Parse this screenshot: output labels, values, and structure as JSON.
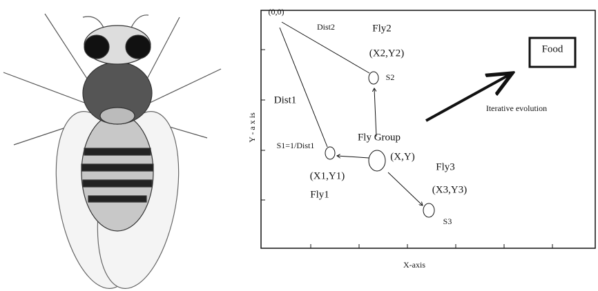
{
  "origin": "(0,0)",
  "dist2": "Dist2",
  "fly2": "Fly2",
  "fly2_pos": "(X2,Y2)",
  "s2": "S2",
  "food": "Food",
  "dist1": "Dist1",
  "iterative": "Iterative evolution",
  "fly_group": "Fly Group",
  "s1": "S1=1/Dist1",
  "group_pos": "(X,Y)",
  "fly3": "Fly3",
  "fly1_pos": "(X1,Y1)",
  "fly3_pos": "(X3,Y3)",
  "fly1": "Fly1",
  "s3": "S3",
  "y_axis": "Y - a x is",
  "x_axis": "X-axis"
}
